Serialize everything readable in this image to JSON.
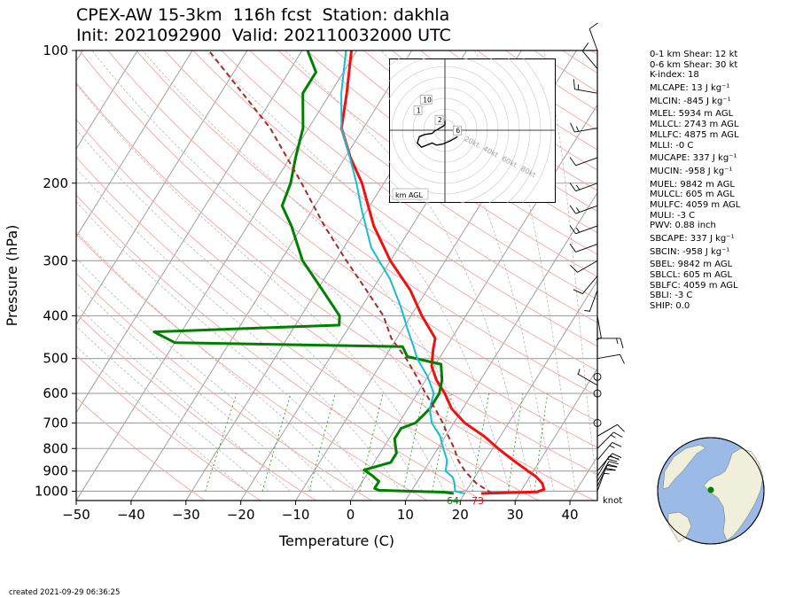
{
  "title": {
    "line1": "CPEX-AW 15-3km  116h fcst  Station: dakhla",
    "line2": "Init: 2021092900  Valid: 202110032000 UTC"
  },
  "created": "created 2021-09-29 06:36:25",
  "knot_label": "knot",
  "hodograph": {
    "label": "km AGL",
    "ring_labels": [
      "20kt",
      "40kt",
      "60kt",
      "80kt"
    ],
    "height_markers": [
      "1",
      "2",
      "6",
      "10"
    ],
    "hodo_points_kt": [
      [
        0,
        9
      ],
      [
        0,
        5
      ],
      [
        -3,
        3
      ],
      [
        -10,
        -1
      ],
      [
        -12,
        -3
      ],
      [
        -19,
        -4
      ],
      [
        -24,
        -6
      ],
      [
        -26,
        -12
      ],
      [
        -22,
        -16
      ],
      [
        -12,
        -12
      ],
      [
        -8,
        -14
      ],
      [
        -2,
        -13
      ],
      [
        5,
        -10
      ],
      [
        12,
        -6
      ]
    ]
  },
  "indices": [
    "0-1 km Shear: 12 kt",
    "0-6 km Shear: 30 kt",
    "K-index: 18",
    "MLCAPE: 13 J kg⁻¹",
    "MLCIN: -845 J kg⁻¹",
    "MLEL: 5934 m AGL",
    "MLLCL: 2743 m AGL",
    "MLLFC: 4875 m AGL",
    "MLLI: -0 C",
    "MUCAPE: 337 J kg⁻¹",
    "MUCIN: -958 J kg⁻¹",
    "MUEL: 9842 m AGL",
    "MULCL: 605 m AGL",
    "MULFC: 4059 m AGL",
    "MULI: -3 C",
    "PWV: 0.88 inch",
    "SBCAPE: 337 J kg⁻¹",
    "SBCIN: -958 J kg⁻¹",
    "SBEL: 9842 m AGL",
    "SBLCL: 605 m AGL",
    "SBLFC: 4059 m AGL",
    "SBLI: -3 C",
    "SHIP: 0.0"
  ],
  "colors": {
    "temperature": "#ee1111",
    "dewpoint": "#008000",
    "wetbulb": "#17becf",
    "parcel": "#a52a2a",
    "isobar": "#a0a0a0",
    "isotherm": "#a0a0a0",
    "dry_adiabat": "#f4a6a6",
    "moist_adiabat": "#b0b0b0",
    "mixing_ratio": "#2ca02c",
    "globe_ocean": "#9cbae6",
    "globe_land": "#efefdc",
    "station_marker": "#008000"
  },
  "chart_data": {
    "type": "line",
    "xlabel": "Temperature (C)",
    "ylabel": "Pressure (hPa)",
    "xlim": [
      -50,
      45
    ],
    "ylim": [
      1050,
      100
    ],
    "x_ticks": [
      "−50",
      "−40",
      "−30",
      "−20",
      "−10",
      "0",
      "10",
      "20",
      "30",
      "40"
    ],
    "y_ticks": [
      "100",
      "200",
      "300",
      "400",
      "500",
      "600",
      "700",
      "800",
      "900",
      "1000"
    ],
    "surface_labels": {
      "dewpoint": "64",
      "temperature": "73"
    },
    "series": [
      {
        "key": "temperature",
        "points": [
          [
            1012,
            23
          ],
          [
            1010,
            25
          ],
          [
            1004,
            33
          ],
          [
            990,
            34
          ],
          [
            960,
            33
          ],
          [
            925,
            31
          ],
          [
            900,
            29
          ],
          [
            850,
            25
          ],
          [
            800,
            21
          ],
          [
            750,
            17
          ],
          [
            700,
            12
          ],
          [
            650,
            8
          ],
          [
            600,
            5
          ],
          [
            560,
            2
          ],
          [
            520,
            -0.5
          ],
          [
            480,
            -2
          ],
          [
            450,
            -3
          ],
          [
            400,
            -8
          ],
          [
            350,
            -13
          ],
          [
            300,
            -20
          ],
          [
            250,
            -27
          ],
          [
            200,
            -34
          ],
          [
            175,
            -39
          ],
          [
            150,
            -44
          ],
          [
            125,
            -47
          ],
          [
            100,
            -51
          ]
        ]
      },
      {
        "key": "dewpoint",
        "points": [
          [
            1012,
            18
          ],
          [
            1005,
            16
          ],
          [
            1000,
            10
          ],
          [
            995,
            4
          ],
          [
            985,
            3
          ],
          [
            950,
            3
          ],
          [
            920,
            1
          ],
          [
            895,
            -1
          ],
          [
            860,
            3
          ],
          [
            820,
            3
          ],
          [
            790,
            2
          ],
          [
            760,
            1
          ],
          [
            720,
            1
          ],
          [
            700,
            3
          ],
          [
            650,
            4
          ],
          [
            600,
            4
          ],
          [
            560,
            3
          ],
          [
            515,
            1
          ],
          [
            495,
            -6
          ],
          [
            470,
            -8
          ],
          [
            460,
            -50
          ],
          [
            435,
            -55
          ],
          [
            420,
            -22
          ],
          [
            400,
            -23
          ],
          [
            350,
            -29
          ],
          [
            300,
            -36
          ],
          [
            250,
            -42
          ],
          [
            225,
            -46
          ],
          [
            200,
            -47
          ],
          [
            175,
            -49
          ],
          [
            150,
            -51
          ],
          [
            125,
            -55
          ],
          [
            112,
            -55
          ],
          [
            100,
            -59
          ]
        ]
      },
      {
        "key": "wetbulb",
        "points": [
          [
            1012,
            20
          ],
          [
            1000,
            18
          ],
          [
            960,
            17
          ],
          [
            930,
            16
          ],
          [
            900,
            14
          ],
          [
            850,
            13
          ],
          [
            800,
            11
          ],
          [
            750,
            9
          ],
          [
            700,
            6
          ],
          [
            650,
            4
          ],
          [
            600,
            3
          ],
          [
            550,
            0
          ],
          [
            500,
            -4
          ],
          [
            470,
            -6
          ],
          [
            430,
            -9
          ],
          [
            380,
            -13
          ],
          [
            330,
            -18
          ],
          [
            280,
            -25
          ],
          [
            230,
            -31
          ],
          [
            200,
            -35
          ],
          [
            170,
            -40
          ],
          [
            150,
            -44
          ],
          [
            125,
            -48
          ],
          [
            100,
            -52
          ]
        ]
      },
      {
        "key": "parcel",
        "points": [
          [
            1012,
            25
          ],
          [
            960,
            21
          ],
          [
            900,
            17.5
          ],
          [
            850,
            15
          ],
          [
            800,
            13
          ],
          [
            750,
            10.5
          ],
          [
            700,
            8
          ],
          [
            650,
            5
          ],
          [
            600,
            1.5
          ],
          [
            550,
            -2
          ],
          [
            500,
            -6
          ],
          [
            450,
            -11
          ],
          [
            400,
            -15
          ],
          [
            350,
            -21
          ],
          [
            300,
            -28
          ],
          [
            250,
            -36
          ],
          [
            200,
            -45
          ],
          [
            150,
            -57
          ],
          [
            100,
            -77
          ]
        ]
      }
    ],
    "wind_barbs": [
      {
        "p": 1000,
        "spd": 15,
        "dir": 20
      },
      {
        "p": 975,
        "spd": 20,
        "dir": 25
      },
      {
        "p": 950,
        "spd": 20,
        "dir": 30
      },
      {
        "p": 925,
        "spd": 20,
        "dir": 30
      },
      {
        "p": 900,
        "spd": 20,
        "dir": 40
      },
      {
        "p": 850,
        "spd": 15,
        "dir": 40
      },
      {
        "p": 800,
        "spd": 15,
        "dir": 45
      },
      {
        "p": 750,
        "spd": 10,
        "dir": 60
      },
      {
        "p": 700,
        "spd": 0,
        "dir": 0
      },
      {
        "p": 600,
        "spd": 0,
        "dir": 0
      },
      {
        "p": 575,
        "spd": 5,
        "dir": 300
      },
      {
        "p": 550,
        "spd": 0,
        "dir": 0
      },
      {
        "p": 500,
        "spd": 10,
        "dir": 80
      },
      {
        "p": 450,
        "spd": 15,
        "dir": 90
      },
      {
        "p": 400,
        "spd": 5,
        "dir": 170
      },
      {
        "p": 350,
        "spd": 5,
        "dir": 200
      },
      {
        "p": 325,
        "spd": 10,
        "dir": 220
      },
      {
        "p": 300,
        "spd": 10,
        "dir": 240
      },
      {
        "p": 275,
        "spd": 10,
        "dir": 250
      },
      {
        "p": 250,
        "spd": 15,
        "dir": 250
      },
      {
        "p": 225,
        "spd": 15,
        "dir": 250
      },
      {
        "p": 200,
        "spd": 15,
        "dir": 250
      },
      {
        "p": 175,
        "spd": 10,
        "dir": 250
      },
      {
        "p": 150,
        "spd": 15,
        "dir": 260
      },
      {
        "p": 125,
        "spd": 15,
        "dir": 280
      },
      {
        "p": 110,
        "spd": 10,
        "dir": 320
      },
      {
        "p": 100,
        "spd": 10,
        "dir": 340
      }
    ]
  }
}
